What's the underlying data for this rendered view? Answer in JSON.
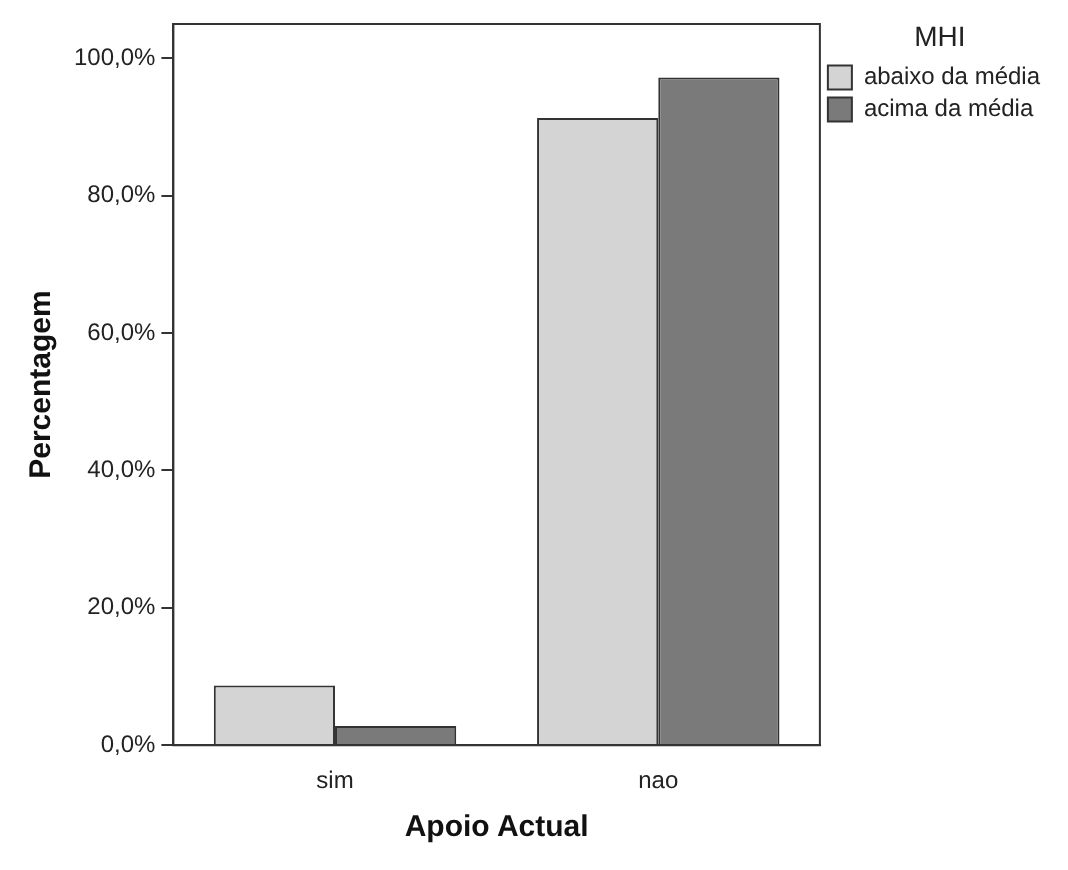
{
  "chart_data": {
    "type": "bar",
    "xlabel": "Apoio Actual",
    "ylabel": "Percentagem",
    "legend_title": "MHI",
    "categories": [
      "sim",
      "nao"
    ],
    "series": [
      {
        "name": "abaixo da média",
        "color": "#d4d4d4",
        "values": [
          8.7,
          91.3
        ]
      },
      {
        "name": "acima da média",
        "color": "#7a7a7a",
        "values": [
          2.8,
          97.2
        ]
      }
    ],
    "ylim": [
      0,
      105
    ],
    "yticks": [
      {
        "value": 0,
        "label": "0,0%"
      },
      {
        "value": 20,
        "label": "20,0%"
      },
      {
        "value": 40,
        "label": "40,0%"
      },
      {
        "value": 60,
        "label": "60,0%"
      },
      {
        "value": 80,
        "label": "80,0%"
      },
      {
        "value": 100,
        "label": "100,0%"
      }
    ],
    "grid": false,
    "legend": "top right"
  }
}
